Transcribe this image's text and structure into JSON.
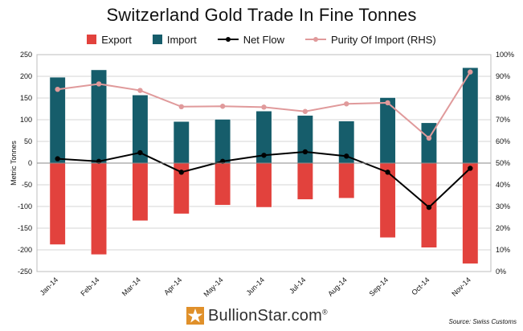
{
  "chart_data": {
    "type": "bar",
    "title": "Switzerland Gold Trade In Fine Tonnes",
    "categories": [
      "Jan-14",
      "Feb-14",
      "Mar-14",
      "Apr-14",
      "May-14",
      "Jun-14",
      "Jul-14",
      "Aug-14",
      "Sep-14",
      "Oct-14",
      "Nov-14"
    ],
    "series": [
      {
        "name": "Export",
        "kind": "bar",
        "axis": "left",
        "color": "#e2423d",
        "values": [
          -188,
          -211,
          -133,
          -117,
          -97,
          -102,
          -84,
          -81,
          -172,
          -195,
          -232
        ]
      },
      {
        "name": "Import",
        "kind": "bar",
        "axis": "left",
        "color": "#165d6b",
        "values": [
          198,
          215,
          157,
          96,
          101,
          120,
          110,
          97,
          151,
          93,
          220
        ]
      },
      {
        "name": "Net Flow",
        "kind": "line",
        "axis": "left",
        "color": "#000000",
        "values": [
          10,
          4,
          24,
          -21,
          4,
          18,
          26,
          16,
          -21,
          -102,
          -12
        ]
      },
      {
        "name": "Purity Of Import (RHS)",
        "kind": "line",
        "axis": "right",
        "color": "#e09a9b",
        "values": [
          84,
          86.5,
          83.5,
          76,
          76.2,
          75.8,
          73.8,
          77.3,
          77.8,
          61.5,
          92
        ]
      }
    ],
    "ylabel": "Metric Tonnes",
    "ylim": [
      -250,
      250
    ],
    "ystep": 50,
    "y2lim": [
      0,
      100
    ],
    "y2step": 10,
    "y2suffix": "%",
    "grid": true,
    "legend": "top-center"
  },
  "legend_labels": [
    "Export",
    "Import",
    "Net Flow",
    "Purity Of Import (RHS)"
  ],
  "footer": {
    "brand": "BullionStar.com",
    "registered": "®",
    "source": "Source: Swiss Customs"
  }
}
